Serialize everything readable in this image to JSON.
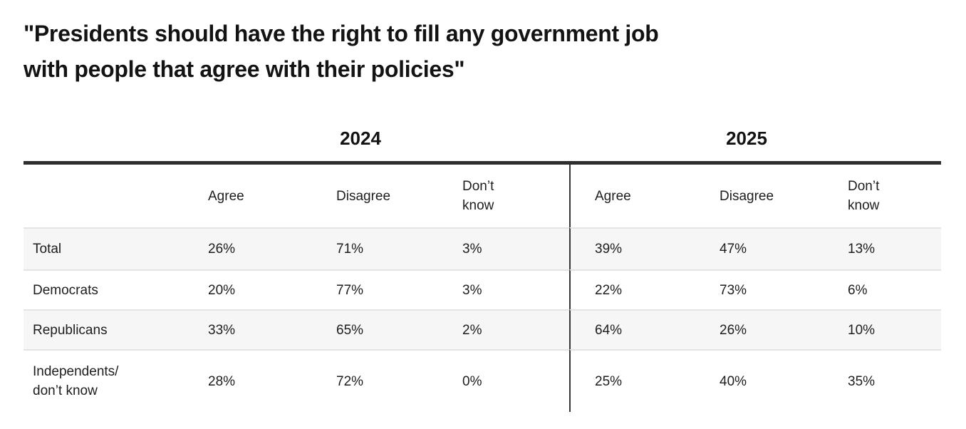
{
  "title": {
    "line1": "\"Presidents should have the right to fill any government job",
    "line2": "with people that agree with their policies\""
  },
  "table": {
    "year_groups": [
      "2024",
      "2025"
    ],
    "columns": [
      "Agree",
      "Disagree",
      "Don’t\nknow"
    ],
    "rows": [
      {
        "label": "Total",
        "y2024": [
          "26%",
          "71%",
          "3%"
        ],
        "y2025": [
          "39%",
          "47%",
          "13%"
        ]
      },
      {
        "label": "Democrats",
        "y2024": [
          "20%",
          "77%",
          "3%"
        ],
        "y2025": [
          "22%",
          "73%",
          "6%"
        ]
      },
      {
        "label": "Republicans",
        "y2024": [
          "33%",
          "65%",
          "2%"
        ],
        "y2025": [
          "64%",
          "26%",
          "10%"
        ]
      },
      {
        "label": "Independents/\ndon’t know",
        "y2024": [
          "28%",
          "72%",
          "0%"
        ],
        "y2025": [
          "25%",
          "40%",
          "35%"
        ]
      }
    ]
  },
  "chart_data": {
    "type": "table",
    "title": "\"Presidents should have the right to fill any government job with people that agree with their policies\"",
    "column_groups": [
      "2024",
      "2025"
    ],
    "columns": [
      "Agree",
      "Disagree",
      "Don't know"
    ],
    "row_labels": [
      "Total",
      "Democrats",
      "Republicans",
      "Independents/don't know"
    ],
    "values_2024": [
      [
        26,
        71,
        3
      ],
      [
        20,
        77,
        3
      ],
      [
        33,
        65,
        2
      ],
      [
        28,
        72,
        0
      ]
    ],
    "values_2025": [
      [
        39,
        47,
        13
      ],
      [
        22,
        73,
        6
      ],
      [
        64,
        26,
        10
      ],
      [
        25,
        40,
        35
      ]
    ],
    "unit": "%",
    "layout": {
      "row_striping": true,
      "divider_between_groups": true
    }
  },
  "colors": {
    "background": "#ffffff",
    "text": "#1d1d1d",
    "title_text": "#131313",
    "thick_rule": "#2e2e2e",
    "group_divider": "#373737",
    "row_stripe": "#f6f6f6",
    "row_border": "#e4e4e4"
  }
}
